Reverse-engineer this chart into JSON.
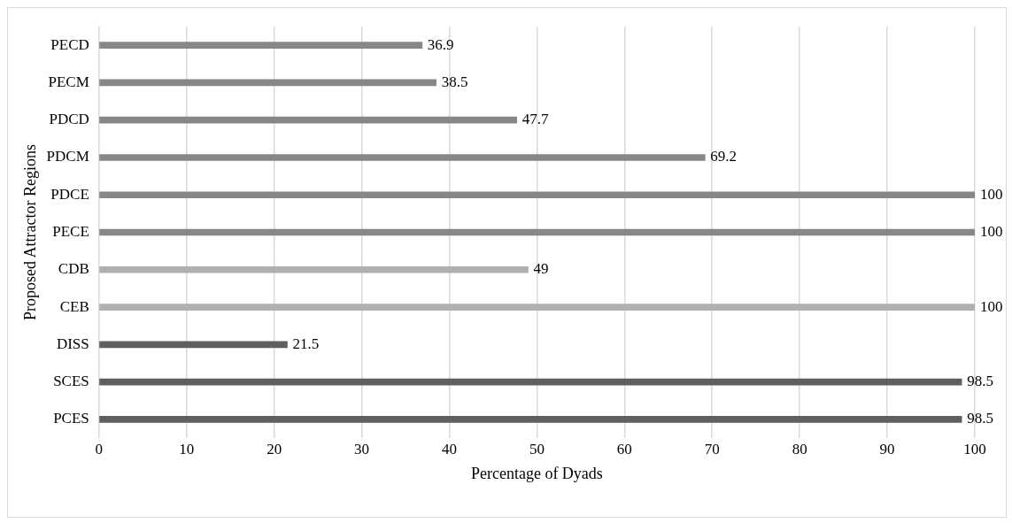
{
  "chart_data": {
    "type": "bar",
    "orientation": "horizontal",
    "xlabel": "Percentage of Dyads",
    "ylabel": "Proposed Attractor Regions",
    "categories": [
      "PECD",
      "PECM",
      "PDCD",
      "PDCM",
      "PDCE",
      "PECE",
      "CDB",
      "CEB",
      "DISS",
      "SCES",
      "PCES"
    ],
    "values": [
      36.9,
      38.5,
      47.7,
      69.2,
      100,
      100,
      49,
      100,
      21.5,
      98.5,
      98.5
    ],
    "colors": [
      "#878787",
      "#878787",
      "#878787",
      "#878787",
      "#878787",
      "#878787",
      "#b0b0b0",
      "#b0b0b0",
      "#5f5f5f",
      "#5f5f5f",
      "#5f5f5f"
    ],
    "xlim": [
      0,
      100
    ],
    "xticks": [
      0,
      10,
      20,
      30,
      40,
      50,
      60,
      70,
      80,
      90,
      100
    ],
    "grid": "x",
    "data_labels": true
  }
}
